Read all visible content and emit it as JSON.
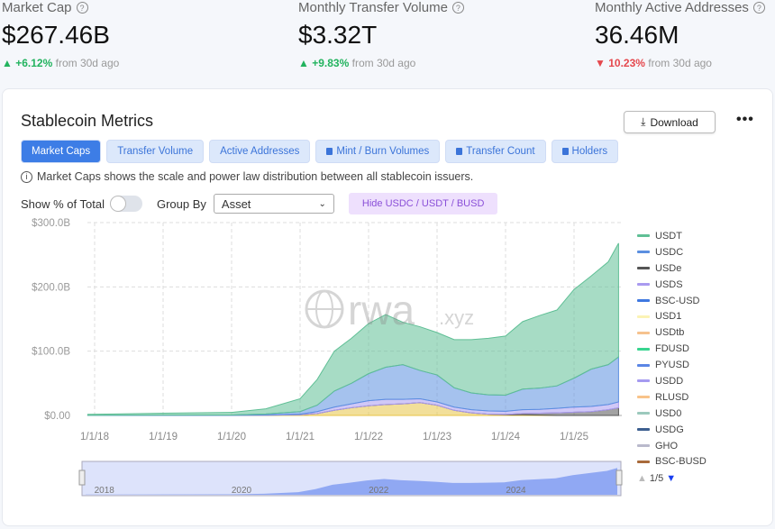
{
  "kpis": [
    {
      "label": "Market Cap",
      "value": "$267.46B",
      "change": "+6.12%",
      "direction": "up",
      "suffix": "from 30d ago"
    },
    {
      "label": "Monthly Transfer Volume",
      "value": "$3.32T",
      "change": "+9.83%",
      "direction": "up",
      "suffix": "from 30d ago"
    },
    {
      "label": "Monthly Active Addresses",
      "value": "36.46M",
      "change": "10.23%",
      "direction": "down",
      "suffix": "from 30d ago"
    }
  ],
  "card": {
    "title": "Stablecoin Metrics",
    "download": "Download",
    "more": "•••",
    "tabs": [
      {
        "label": "Market Caps",
        "active": true,
        "locked": false
      },
      {
        "label": "Transfer Volume",
        "locked": false
      },
      {
        "label": "Active Addresses",
        "locked": false
      },
      {
        "label": "Mint / Burn Volumes",
        "locked": true
      },
      {
        "label": "Transfer Count",
        "locked": true
      },
      {
        "label": "Holders",
        "locked": true
      }
    ],
    "info": "Market Caps shows the scale and power law distribution between all stablecoin issuers.",
    "show_pct_label": "Show % of Total",
    "show_pct": false,
    "group_by_label": "Group By",
    "group_by_value": "Asset",
    "hide_button": "Hide USDC / USDT / BUSD",
    "legend_page": "1/5",
    "watermark": "rwa",
    "watermark_suffix": ".xyz"
  },
  "chart_data": {
    "type": "area",
    "stacked": true,
    "ylim": [
      0,
      300
    ],
    "yticks": [
      "$0.00",
      "$100.0B",
      "$200.0B",
      "$300.0B"
    ],
    "ytick_values": [
      0,
      100,
      200,
      300
    ],
    "xticks": [
      "1/1/18",
      "1/1/19",
      "1/1/20",
      "1/1/21",
      "1/1/22",
      "1/1/23",
      "1/1/24",
      "1/1/25"
    ],
    "xtick_values": [
      2018,
      2019,
      2020,
      2021,
      2022,
      2023,
      2024,
      2025
    ],
    "navigator_labels": [
      "2018",
      "2020",
      "2022",
      "2024"
    ],
    "x": [
      2017.9,
      2019,
      2020,
      2020.5,
      2021,
      2021.25,
      2021.5,
      2021.75,
      2022,
      2022.25,
      2022.5,
      2022.75,
      2023,
      2023.25,
      2023.5,
      2023.75,
      2024,
      2024.25,
      2024.5,
      2024.75,
      2025,
      2025.25,
      2025.5,
      2025.65
    ],
    "series": [
      {
        "color": "#e8c547",
        "values": [
          0,
          0,
          0.1,
          0.3,
          1,
          3,
          8,
          12,
          15,
          17,
          18,
          20,
          16,
          8,
          4,
          2,
          1,
          1,
          0.5,
          0,
          0,
          0,
          0,
          0
        ]
      },
      {
        "name": "USDe",
        "color": "#555555",
        "values": [
          0,
          0,
          0,
          0,
          0,
          0,
          0,
          0,
          0,
          0,
          0,
          0,
          0,
          0,
          0,
          0,
          0.5,
          2,
          3,
          4,
          5,
          6,
          9,
          12
        ]
      },
      {
        "name": "USDS",
        "color": "#a99af0",
        "values": [
          0,
          0.1,
          0.1,
          0.5,
          1,
          3,
          5,
          6,
          8,
          8,
          7,
          6,
          5,
          5,
          5,
          5,
          5,
          6,
          6,
          7,
          8,
          8,
          8,
          9
        ]
      },
      {
        "name": "USDC",
        "color": "#5b8fe0",
        "values": [
          0.2,
          0.4,
          0.5,
          1.5,
          4,
          10,
          25,
          32,
          42,
          50,
          54,
          44,
          42,
          30,
          26,
          25,
          25,
          32,
          33,
          35,
          45,
          58,
          62,
          70
        ]
      },
      {
        "name": "USDT",
        "color": "#5fbf95",
        "values": [
          1.5,
          3,
          4,
          8,
          20,
          40,
          62,
          70,
          78,
          82,
          66,
          68,
          66,
          75,
          83,
          88,
          92,
          105,
          113,
          118,
          138,
          145,
          160,
          177
        ]
      }
    ],
    "legend": [
      {
        "name": "USDT",
        "color": "#5fbf95"
      },
      {
        "name": "USDC",
        "color": "#5b8fe0"
      },
      {
        "name": "USDe",
        "color": "#555555"
      },
      {
        "name": "USDS",
        "color": "#a99af0"
      },
      {
        "name": "BSC-USD",
        "color": "#3f78e0"
      },
      {
        "name": "USD1",
        "color": "#fbf3b5"
      },
      {
        "name": "USDtb",
        "color": "#f6c28e"
      },
      {
        "name": "FDUSD",
        "color": "#38d48f"
      },
      {
        "name": "PYUSD",
        "color": "#5b86e5"
      },
      {
        "name": "USDD",
        "color": "#a59af0"
      },
      {
        "name": "RLUSD",
        "color": "#f8c38a"
      },
      {
        "name": "USD0",
        "color": "#9cc9bd"
      },
      {
        "name": "USDG",
        "color": "#3d5f8f"
      },
      {
        "name": "GHO",
        "color": "#b9b9cc"
      },
      {
        "name": "BSC-BUSD",
        "color": "#a86a3a"
      }
    ]
  }
}
